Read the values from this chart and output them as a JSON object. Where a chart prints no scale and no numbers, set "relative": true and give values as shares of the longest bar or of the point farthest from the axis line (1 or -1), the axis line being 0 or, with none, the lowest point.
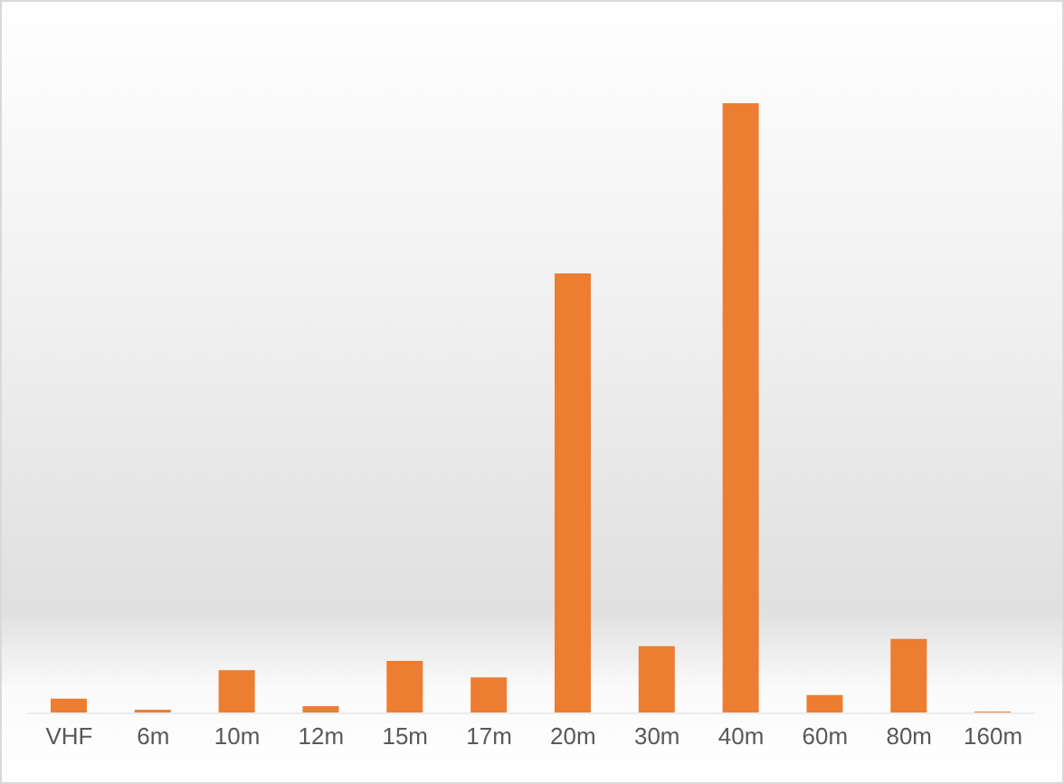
{
  "chart_data": {
    "type": "bar",
    "relative": true,
    "categories": [
      "VHF",
      "6m",
      "10m",
      "12m",
      "15m",
      "17m",
      "20m",
      "30m",
      "40m",
      "60m",
      "80m",
      "160m"
    ],
    "values": [
      0.024,
      0.006,
      0.071,
      0.012,
      0.086,
      0.059,
      0.721,
      0.11,
      1,
      0.03,
      0.122,
      0.003
    ],
    "color": "#ed7d31",
    "grid": false,
    "legend": false
  }
}
